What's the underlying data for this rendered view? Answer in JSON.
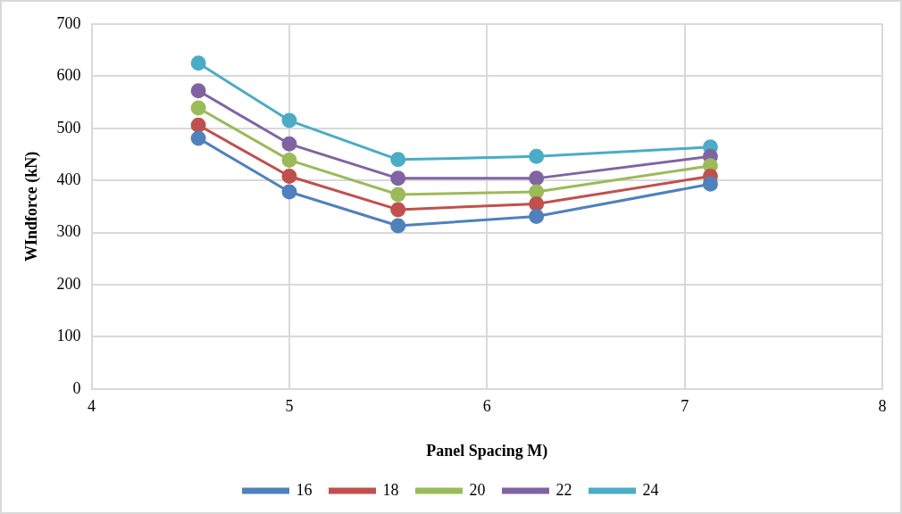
{
  "chart_data": {
    "type": "line",
    "xlabel": "Panel Spacing M)",
    "ylabel": "WIndforce (kN)",
    "xlim": [
      4,
      8
    ],
    "xticks": [
      4,
      5,
      6,
      7,
      8
    ],
    "ylim": [
      0,
      700
    ],
    "yticks": [
      0,
      100,
      200,
      300,
      400,
      500,
      600,
      700
    ],
    "grid": true,
    "legend": "bottom",
    "marker": "circle",
    "line_style": "solid",
    "series": [
      {
        "name": "16",
        "color": "#4f81bd",
        "x": [
          4.54,
          5.0,
          5.55,
          6.25,
          7.13
        ],
        "values": [
          481,
          378,
          313,
          331,
          393
        ]
      },
      {
        "name": "18",
        "color": "#c0504d",
        "x": [
          4.54,
          5.0,
          5.55,
          6.25,
          7.13
        ],
        "values": [
          506,
          408,
          344,
          355,
          408
        ]
      },
      {
        "name": "20",
        "color": "#9bbb59",
        "x": [
          4.54,
          5.0,
          5.55,
          6.25,
          7.13
        ],
        "values": [
          539,
          439,
          373,
          378,
          428
        ]
      },
      {
        "name": "22",
        "color": "#8064a2",
        "x": [
          4.54,
          5.0,
          5.55,
          6.25,
          7.13
        ],
        "values": [
          572,
          470,
          404,
          404,
          446
        ]
      },
      {
        "name": "24",
        "color": "#4bacc6",
        "x": [
          4.54,
          5.0,
          5.55,
          6.25,
          7.13
        ],
        "values": [
          625,
          515,
          440,
          446,
          464
        ]
      }
    ]
  }
}
